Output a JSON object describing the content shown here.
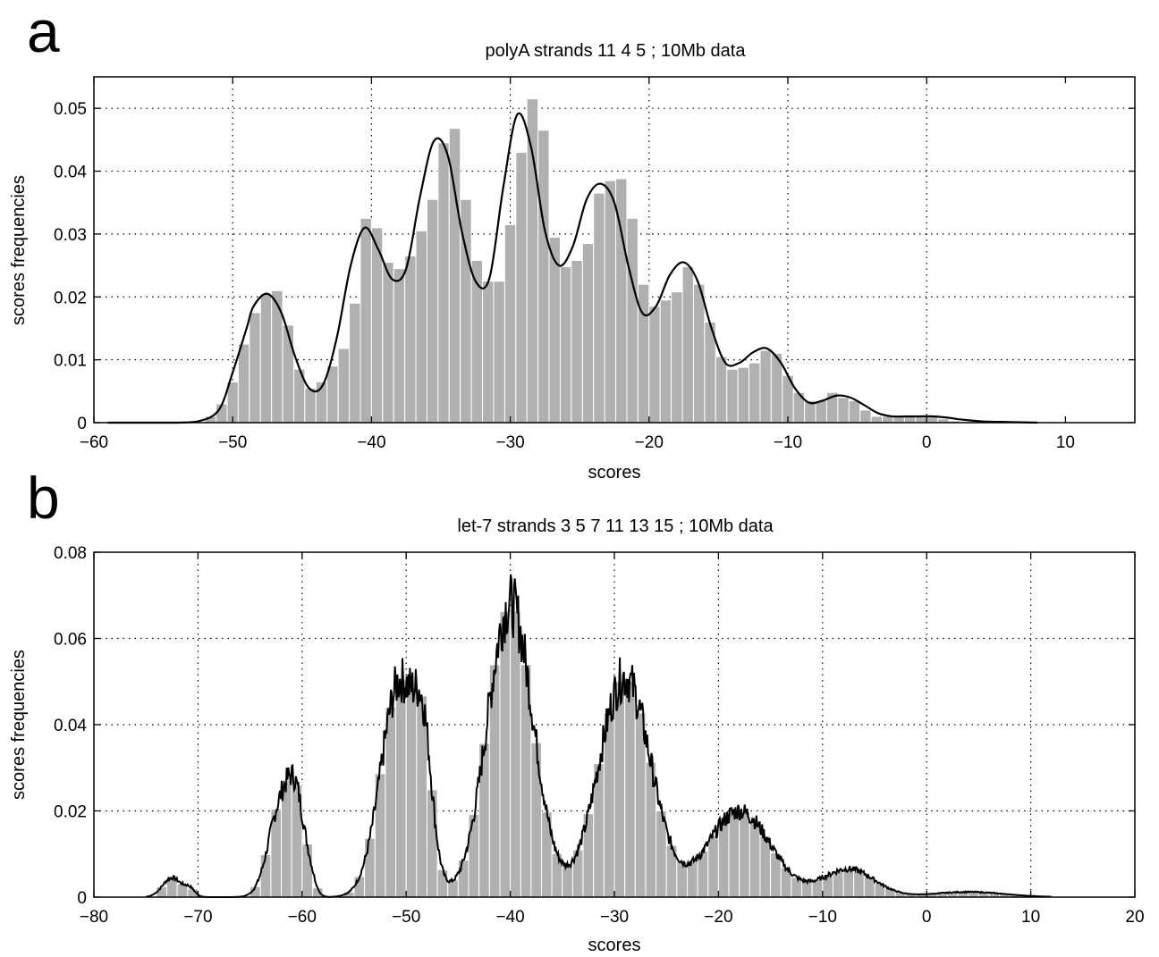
{
  "colors": {
    "bar_fill": "#b0b0b0",
    "bar_edge": "#ffffff",
    "curve": "#000000",
    "grid": "#000000",
    "axes": "#000000"
  },
  "chart_data": [
    {
      "panel_label": "a",
      "type": "bar",
      "overlay": "line",
      "title": "polyA strands 11 4 5 ; 10Mb data",
      "xlabel": "scores",
      "ylabel": "scores frequencies",
      "xlim": [
        -60,
        15
      ],
      "ylim": [
        0,
        0.055
      ],
      "xticks": [
        -60,
        -50,
        -40,
        -30,
        -20,
        -10,
        0,
        10
      ],
      "xtick_labels": [
        "−60",
        "−50",
        "−40",
        "−30",
        "−20",
        "−10",
        "0",
        "10"
      ],
      "yticks": [
        0,
        0.01,
        0.02,
        0.03,
        0.04,
        0.05
      ],
      "ytick_labels": [
        "0",
        "0.01",
        "0.02",
        "0.03",
        "0.04",
        "0.05"
      ],
      "grid": true,
      "bars": {
        "bin_width": 0.8,
        "x": [
          -51.6,
          -50.8,
          -50.0,
          -49.2,
          -48.4,
          -47.6,
          -46.8,
          -46.0,
          -45.2,
          -44.4,
          -43.6,
          -42.8,
          -42.0,
          -41.2,
          -40.4,
          -39.6,
          -38.8,
          -38.0,
          -37.2,
          -36.4,
          -35.6,
          -34.8,
          -34.0,
          -33.2,
          -32.4,
          -31.6,
          -30.8,
          -30.0,
          -29.2,
          -28.4,
          -27.6,
          -26.8,
          -26.0,
          -25.2,
          -24.4,
          -23.6,
          -22.8,
          -22.0,
          -21.2,
          -20.4,
          -19.6,
          -18.8,
          -18.0,
          -17.2,
          -16.4,
          -15.6,
          -14.8,
          -14.0,
          -13.2,
          -12.4,
          -11.6,
          -10.8,
          -10.0,
          -9.2,
          -8.4,
          -7.6,
          -6.8,
          -6.0,
          -5.2,
          -4.4,
          -3.6,
          -2.8,
          -2.0,
          -1.2,
          -0.4,
          0.4,
          1.2,
          2.0,
          2.8
        ],
        "values": [
          0.001,
          0.003,
          0.0065,
          0.0125,
          0.0175,
          0.0205,
          0.021,
          0.0155,
          0.0085,
          0.0055,
          0.0065,
          0.009,
          0.0118,
          0.019,
          0.0325,
          0.031,
          0.0255,
          0.0245,
          0.0265,
          0.0305,
          0.0355,
          0.0445,
          0.0468,
          0.0355,
          0.0258,
          0.0225,
          0.0225,
          0.0315,
          0.043,
          0.0515,
          0.0465,
          0.0295,
          0.0248,
          0.0258,
          0.0285,
          0.0365,
          0.0385,
          0.0388,
          0.0325,
          0.022,
          0.0185,
          0.0195,
          0.0208,
          0.0248,
          0.022,
          0.016,
          0.0105,
          0.0085,
          0.0088,
          0.0095,
          0.0115,
          0.011,
          0.0075,
          0.0048,
          0.0035,
          0.0035,
          0.0048,
          0.004,
          0.0035,
          0.002,
          0.001,
          0.001,
          0.001,
          0.001,
          0.001,
          0.001,
          0.0006,
          0.0003,
          0.0001
        ]
      },
      "curve": {
        "x": [
          -59,
          -56,
          -54,
          -52.5,
          -51,
          -50,
          -49,
          -48.5,
          -47.5,
          -46.5,
          -45.5,
          -44.5,
          -43.5,
          -42.5,
          -41.5,
          -40.5,
          -39.5,
          -38.5,
          -37.5,
          -36.5,
          -35.5,
          -34.5,
          -33.5,
          -32.5,
          -31.5,
          -30.5,
          -29.5,
          -28.5,
          -27.5,
          -26.5,
          -25.5,
          -24.5,
          -23.5,
          -22.5,
          -21.5,
          -20.5,
          -19.5,
          -18.5,
          -17.5,
          -16.5,
          -15.5,
          -14.5,
          -13.5,
          -12.5,
          -11.5,
          -10.5,
          -9.5,
          -8.5,
          -7.5,
          -6.5,
          -5.5,
          -4.5,
          -3.5,
          -2.5,
          -1.5,
          -0.5,
          0.5,
          1.5,
          2.5,
          4,
          6,
          8
        ],
        "y": [
          0,
          0,
          0,
          0.0002,
          0.002,
          0.008,
          0.015,
          0.0185,
          0.0205,
          0.0175,
          0.0105,
          0.0055,
          0.006,
          0.0135,
          0.025,
          0.031,
          0.0275,
          0.0228,
          0.0245,
          0.036,
          0.0448,
          0.0425,
          0.0305,
          0.0225,
          0.023,
          0.0375,
          0.049,
          0.0438,
          0.0305,
          0.025,
          0.028,
          0.0355,
          0.038,
          0.035,
          0.025,
          0.0175,
          0.0185,
          0.0235,
          0.0255,
          0.0225,
          0.015,
          0.0095,
          0.0095,
          0.0112,
          0.0118,
          0.0095,
          0.0055,
          0.0032,
          0.0035,
          0.0043,
          0.004,
          0.0028,
          0.0015,
          0.001,
          0.001,
          0.001,
          0.001,
          0.0008,
          0.0005,
          0.0002,
          0.0001,
          0
        ]
      }
    },
    {
      "panel_label": "b",
      "type": "bar",
      "overlay": "line",
      "title": "let-7 strands 3 5 7 11 13 15 ; 10Mb data",
      "xlabel": "scores",
      "ylabel": "scores frequencies",
      "xlim": [
        -80,
        20
      ],
      "ylim": [
        0,
        0.08
      ],
      "xticks": [
        -80,
        -70,
        -60,
        -50,
        -40,
        -30,
        -20,
        -10,
        0,
        10,
        20
      ],
      "xtick_labels": [
        "−80",
        "−70",
        "−60",
        "−50",
        "−40",
        "−30",
        "−20",
        "−10",
        "0",
        "10",
        "20"
      ],
      "yticks": [
        0,
        0.02,
        0.04,
        0.06,
        0.08
      ],
      "ytick_labels": [
        "0",
        "0.02",
        "0.04",
        "0.06",
        "0.08"
      ],
      "grid": true,
      "bars": {
        "bin_width": 1.0,
        "peaks": [
          {
            "center": -72.5,
            "height": 0.0045,
            "sigma": 0.9
          },
          {
            "center": -70.8,
            "height": 0.0018,
            "sigma": 0.5
          },
          {
            "center": -62.0,
            "height": 0.0215,
            "sigma": 1.2
          },
          {
            "center": -60.5,
            "height": 0.016,
            "sigma": 0.8
          },
          {
            "center": -59.2,
            "height": 0.003,
            "sigma": 0.5
          },
          {
            "center": -50.6,
            "height": 0.05,
            "sigma": 1.8
          },
          {
            "center": -48.3,
            "height": 0.022,
            "sigma": 0.8
          },
          {
            "center": -40.0,
            "height": 0.068,
            "sigma": 2.2
          },
          {
            "center": -29.0,
            "height": 0.051,
            "sigma": 2.5
          },
          {
            "center": -18.0,
            "height": 0.02,
            "sigma": 3.0
          },
          {
            "center": -7.5,
            "height": 0.0065,
            "sigma": 2.5
          },
          {
            "center": 4.0,
            "height": 0.0012,
            "sigma": 3.5
          }
        ]
      }
    }
  ]
}
